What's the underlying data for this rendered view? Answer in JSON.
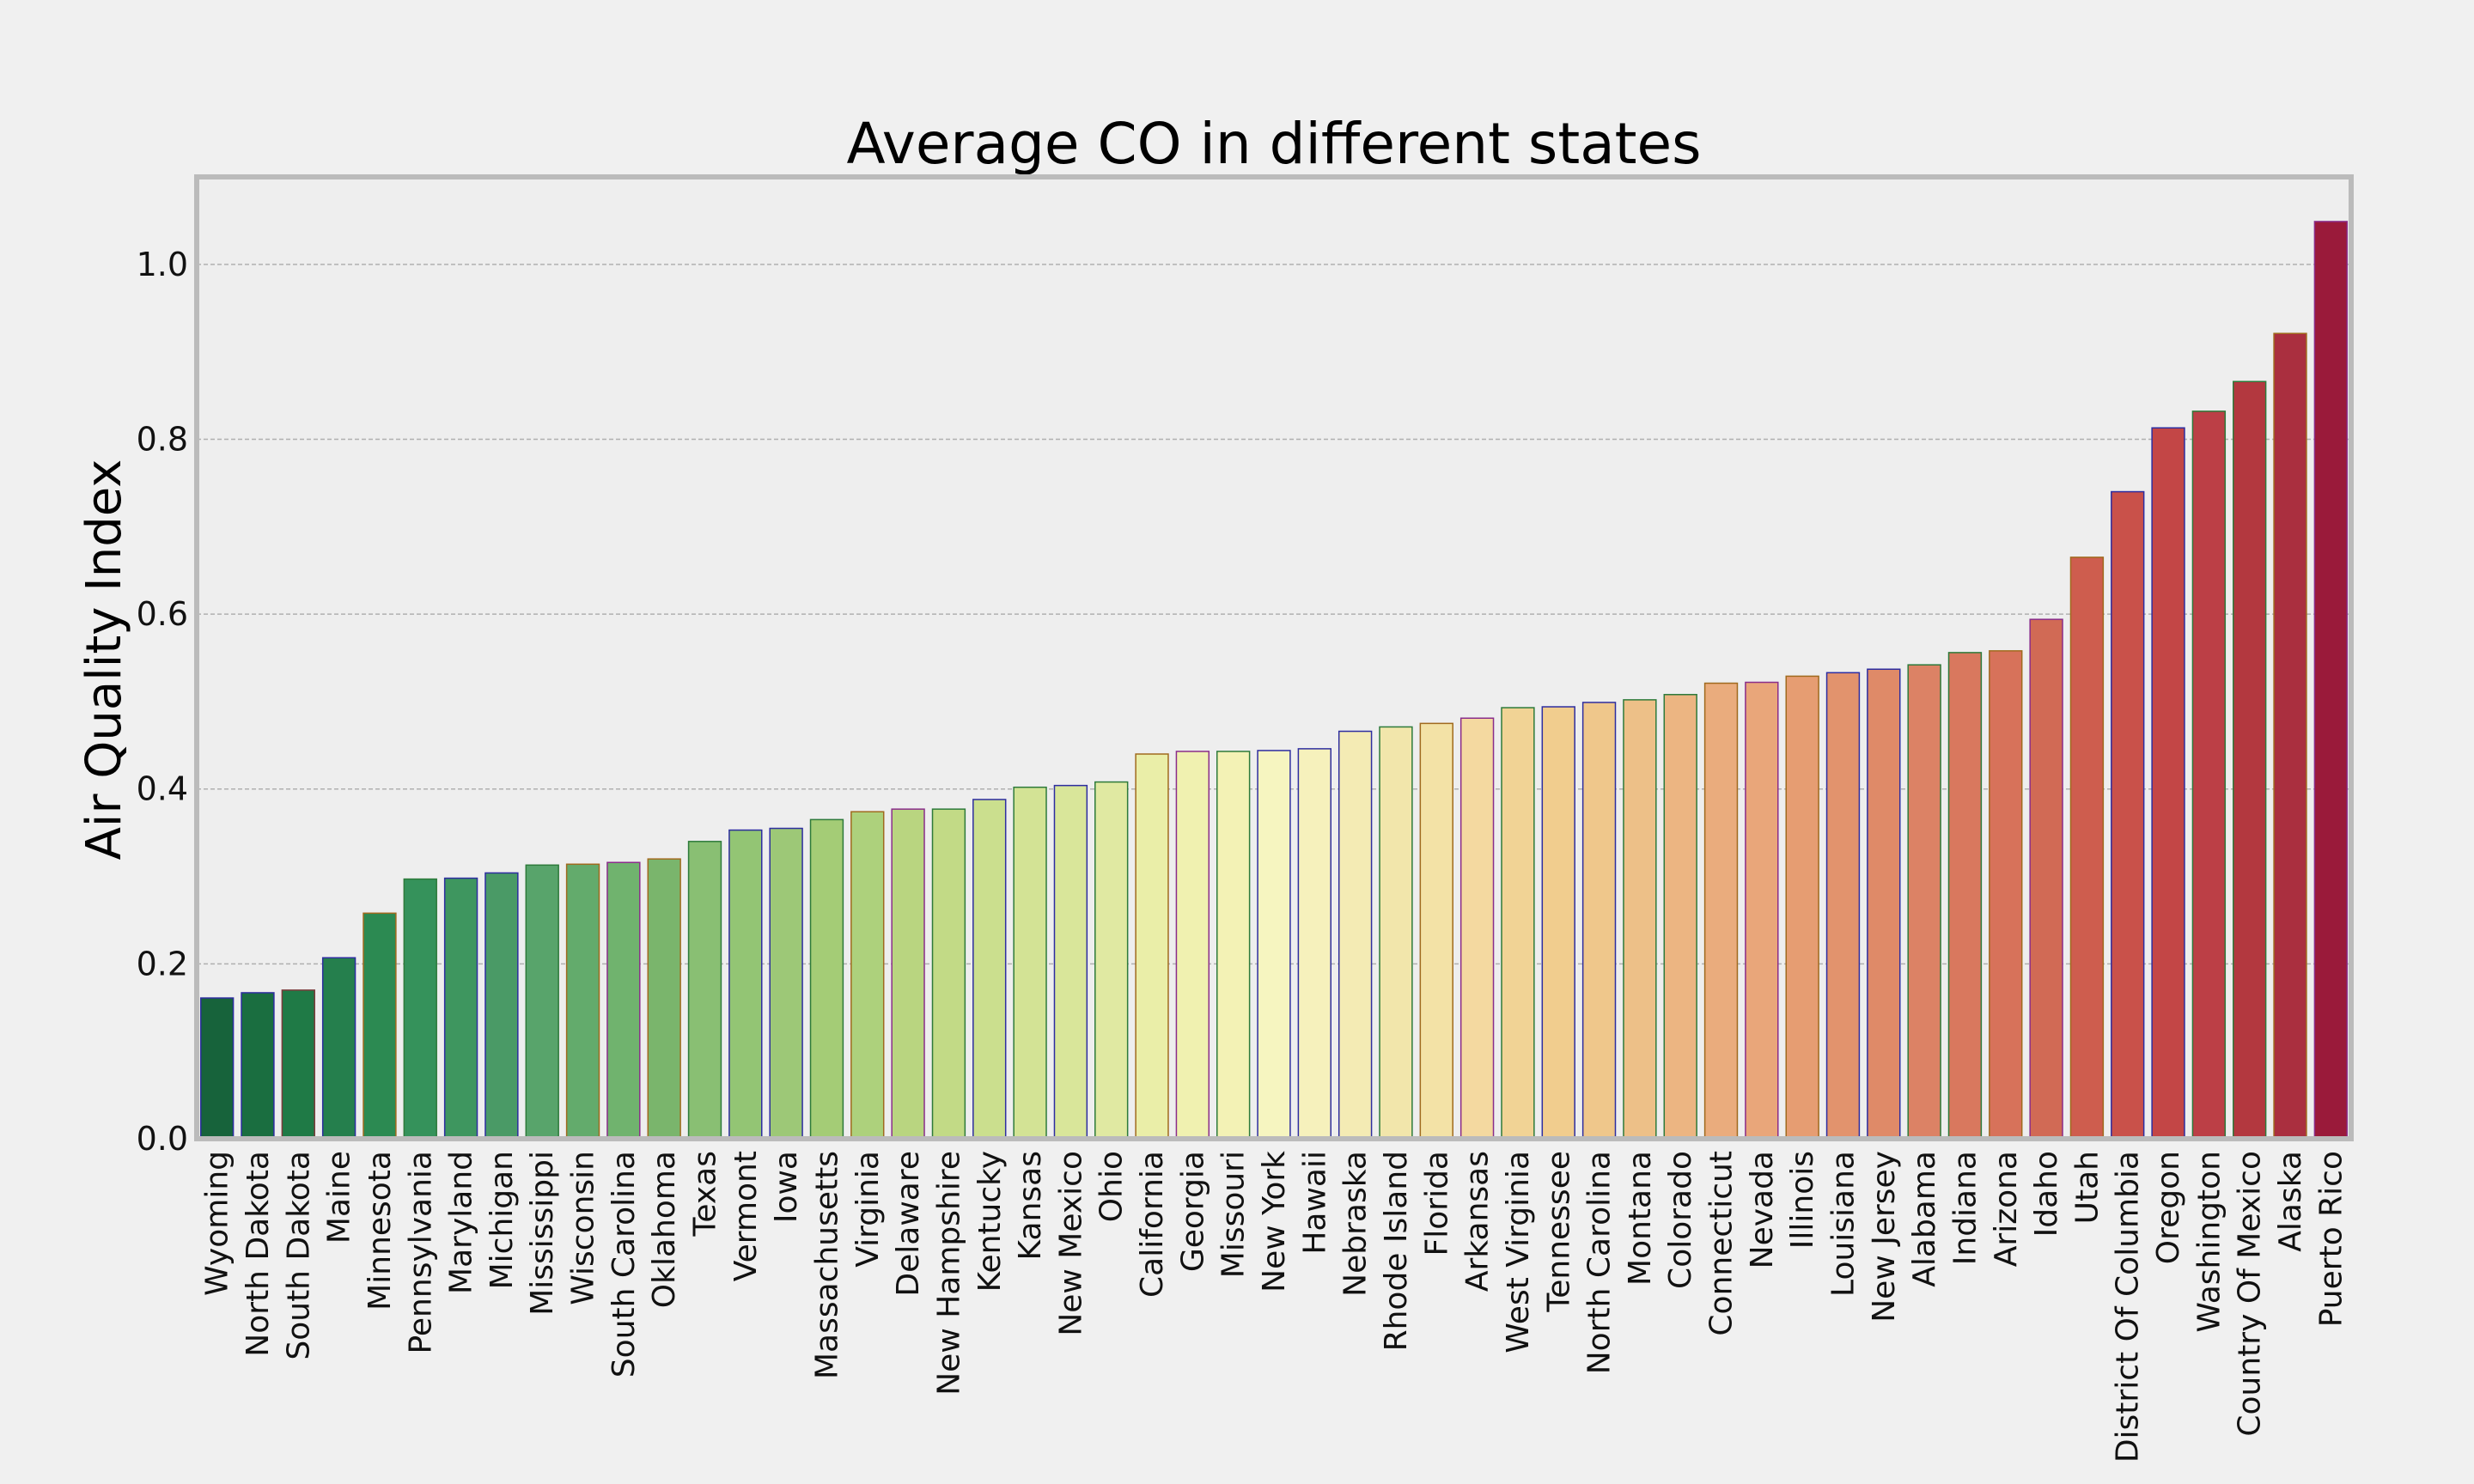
{
  "chart_data": {
    "type": "bar",
    "title": "Average CO in different states",
    "xlabel": "",
    "ylabel": "Air Quality Index",
    "ylim": [
      0,
      1.1
    ],
    "yticks": [
      "0.0",
      "0.2",
      "0.4",
      "0.6",
      "0.8",
      "1.0"
    ],
    "grid": true,
    "legend": "none",
    "categories": [
      "Wyoming",
      "North Dakota",
      "South Dakota",
      "Maine",
      "Minnesota",
      "Pennsylvania",
      "Maryland",
      "Michigan",
      "Mississippi",
      "Wisconsin",
      "South Carolina",
      "Oklahoma",
      "Texas",
      "Vermont",
      "Iowa",
      "Massachusetts",
      "Virginia",
      "Delaware",
      "New Hampshire",
      "Kentucky",
      "Kansas",
      "New Mexico",
      "Ohio",
      "California",
      "Georgia",
      "Missouri",
      "New York",
      "Hawaii",
      "Nebraska",
      "Rhode Island",
      "Florida",
      "Arkansas",
      "West Virginia",
      "Tennessee",
      "North Carolina",
      "Montana",
      "Colorado",
      "Connecticut",
      "Nevada",
      "Illinois",
      "Louisiana",
      "New Jersey",
      "Alabama",
      "Indiana",
      "Arizona",
      "Idaho",
      "Utah",
      "District Of Columbia",
      "Oregon",
      "Washington",
      "Country Of Mexico",
      "Alaska",
      "Puerto Rico"
    ],
    "values": [
      0.161,
      0.167,
      0.17,
      0.207,
      0.258,
      0.297,
      0.298,
      0.304,
      0.313,
      0.314,
      0.316,
      0.32,
      0.34,
      0.353,
      0.355,
      0.365,
      0.374,
      0.377,
      0.377,
      0.388,
      0.402,
      0.404,
      0.408,
      0.44,
      0.443,
      0.443,
      0.444,
      0.446,
      0.466,
      0.471,
      0.475,
      0.481,
      0.493,
      0.494,
      0.499,
      0.502,
      0.508,
      0.521,
      0.522,
      0.529,
      0.533,
      0.537,
      0.542,
      0.556,
      0.558,
      0.594,
      0.665,
      0.74,
      0.813,
      0.832,
      0.866,
      0.921,
      1.049
    ],
    "colors": [
      "#17633b",
      "#1a6e40",
      "#1f7a46",
      "#257f4d",
      "#2c8a52",
      "#35925b",
      "#3e965f",
      "#4a9a66",
      "#58a46b",
      "#63ab6c",
      "#70b36e",
      "#7ab56c",
      "#89bf73",
      "#93c574",
      "#9dc877",
      "#a4cc76",
      "#add17c",
      "#b9d580",
      "#c2da86",
      "#cbdf8e",
      "#d3e395",
      "#d9e69a",
      "#e0e9a2",
      "#eaeea8",
      "#f0f1b0",
      "#f3f2b5",
      "#f6f5c0",
      "#f6f1bc",
      "#f4ebb4",
      "#f2e6ab",
      "#f3e2a6",
      "#f4d9a0",
      "#f1d395",
      "#f1cd8e",
      "#efc78b",
      "#edc088",
      "#ecb582",
      "#eaac7d",
      "#e9a67a",
      "#e69d72",
      "#e2936d",
      "#df8a68",
      "#dc8265",
      "#d9785e",
      "#d7725a",
      "#d16a55",
      "#ce5d4e",
      "#c9514a",
      "#c34646",
      "#bc3f46",
      "#b3383f",
      "#aa2f3f",
      "#9a1a3a"
    ],
    "edgecolors": [
      "#2d2da0",
      "#2d2da0",
      "#7a3a3a",
      "#2d2da0",
      "#a06a1e",
      "#2d7a3a",
      "#2d2da0",
      "#2d2da0",
      "#2d7a3a",
      "#a06a1e",
      "#8a2d8a",
      "#a06a1e",
      "#2d7a3a",
      "#2d2da0",
      "#2d2da0",
      "#2d7a3a",
      "#a06a1e",
      "#8a2d8a",
      "#2d7a3a",
      "#2d2da0",
      "#2d7a3a",
      "#2d2da0",
      "#2d7a3a",
      "#a06a1e",
      "#8a2d8a",
      "#2d7a3a",
      "#2d2da0",
      "#2d2da0",
      "#2d2da0",
      "#2d7a3a",
      "#a06a1e",
      "#8a2d8a",
      "#2d7a3a",
      "#2d2da0",
      "#2d2da0",
      "#2d7a3a",
      "#2d7a3a",
      "#a06a1e",
      "#8a2d8a",
      "#a06a1e",
      "#2d2da0",
      "#2d2da0",
      "#2d7a3a",
      "#2d7a3a",
      "#a06a1e",
      "#8a2d8a",
      "#a06a1e",
      "#2d2da0",
      "#2d2da0",
      "#2d7a3a",
      "#2d7a3a",
      "#a06a1e",
      "#8a2d8a"
    ]
  }
}
